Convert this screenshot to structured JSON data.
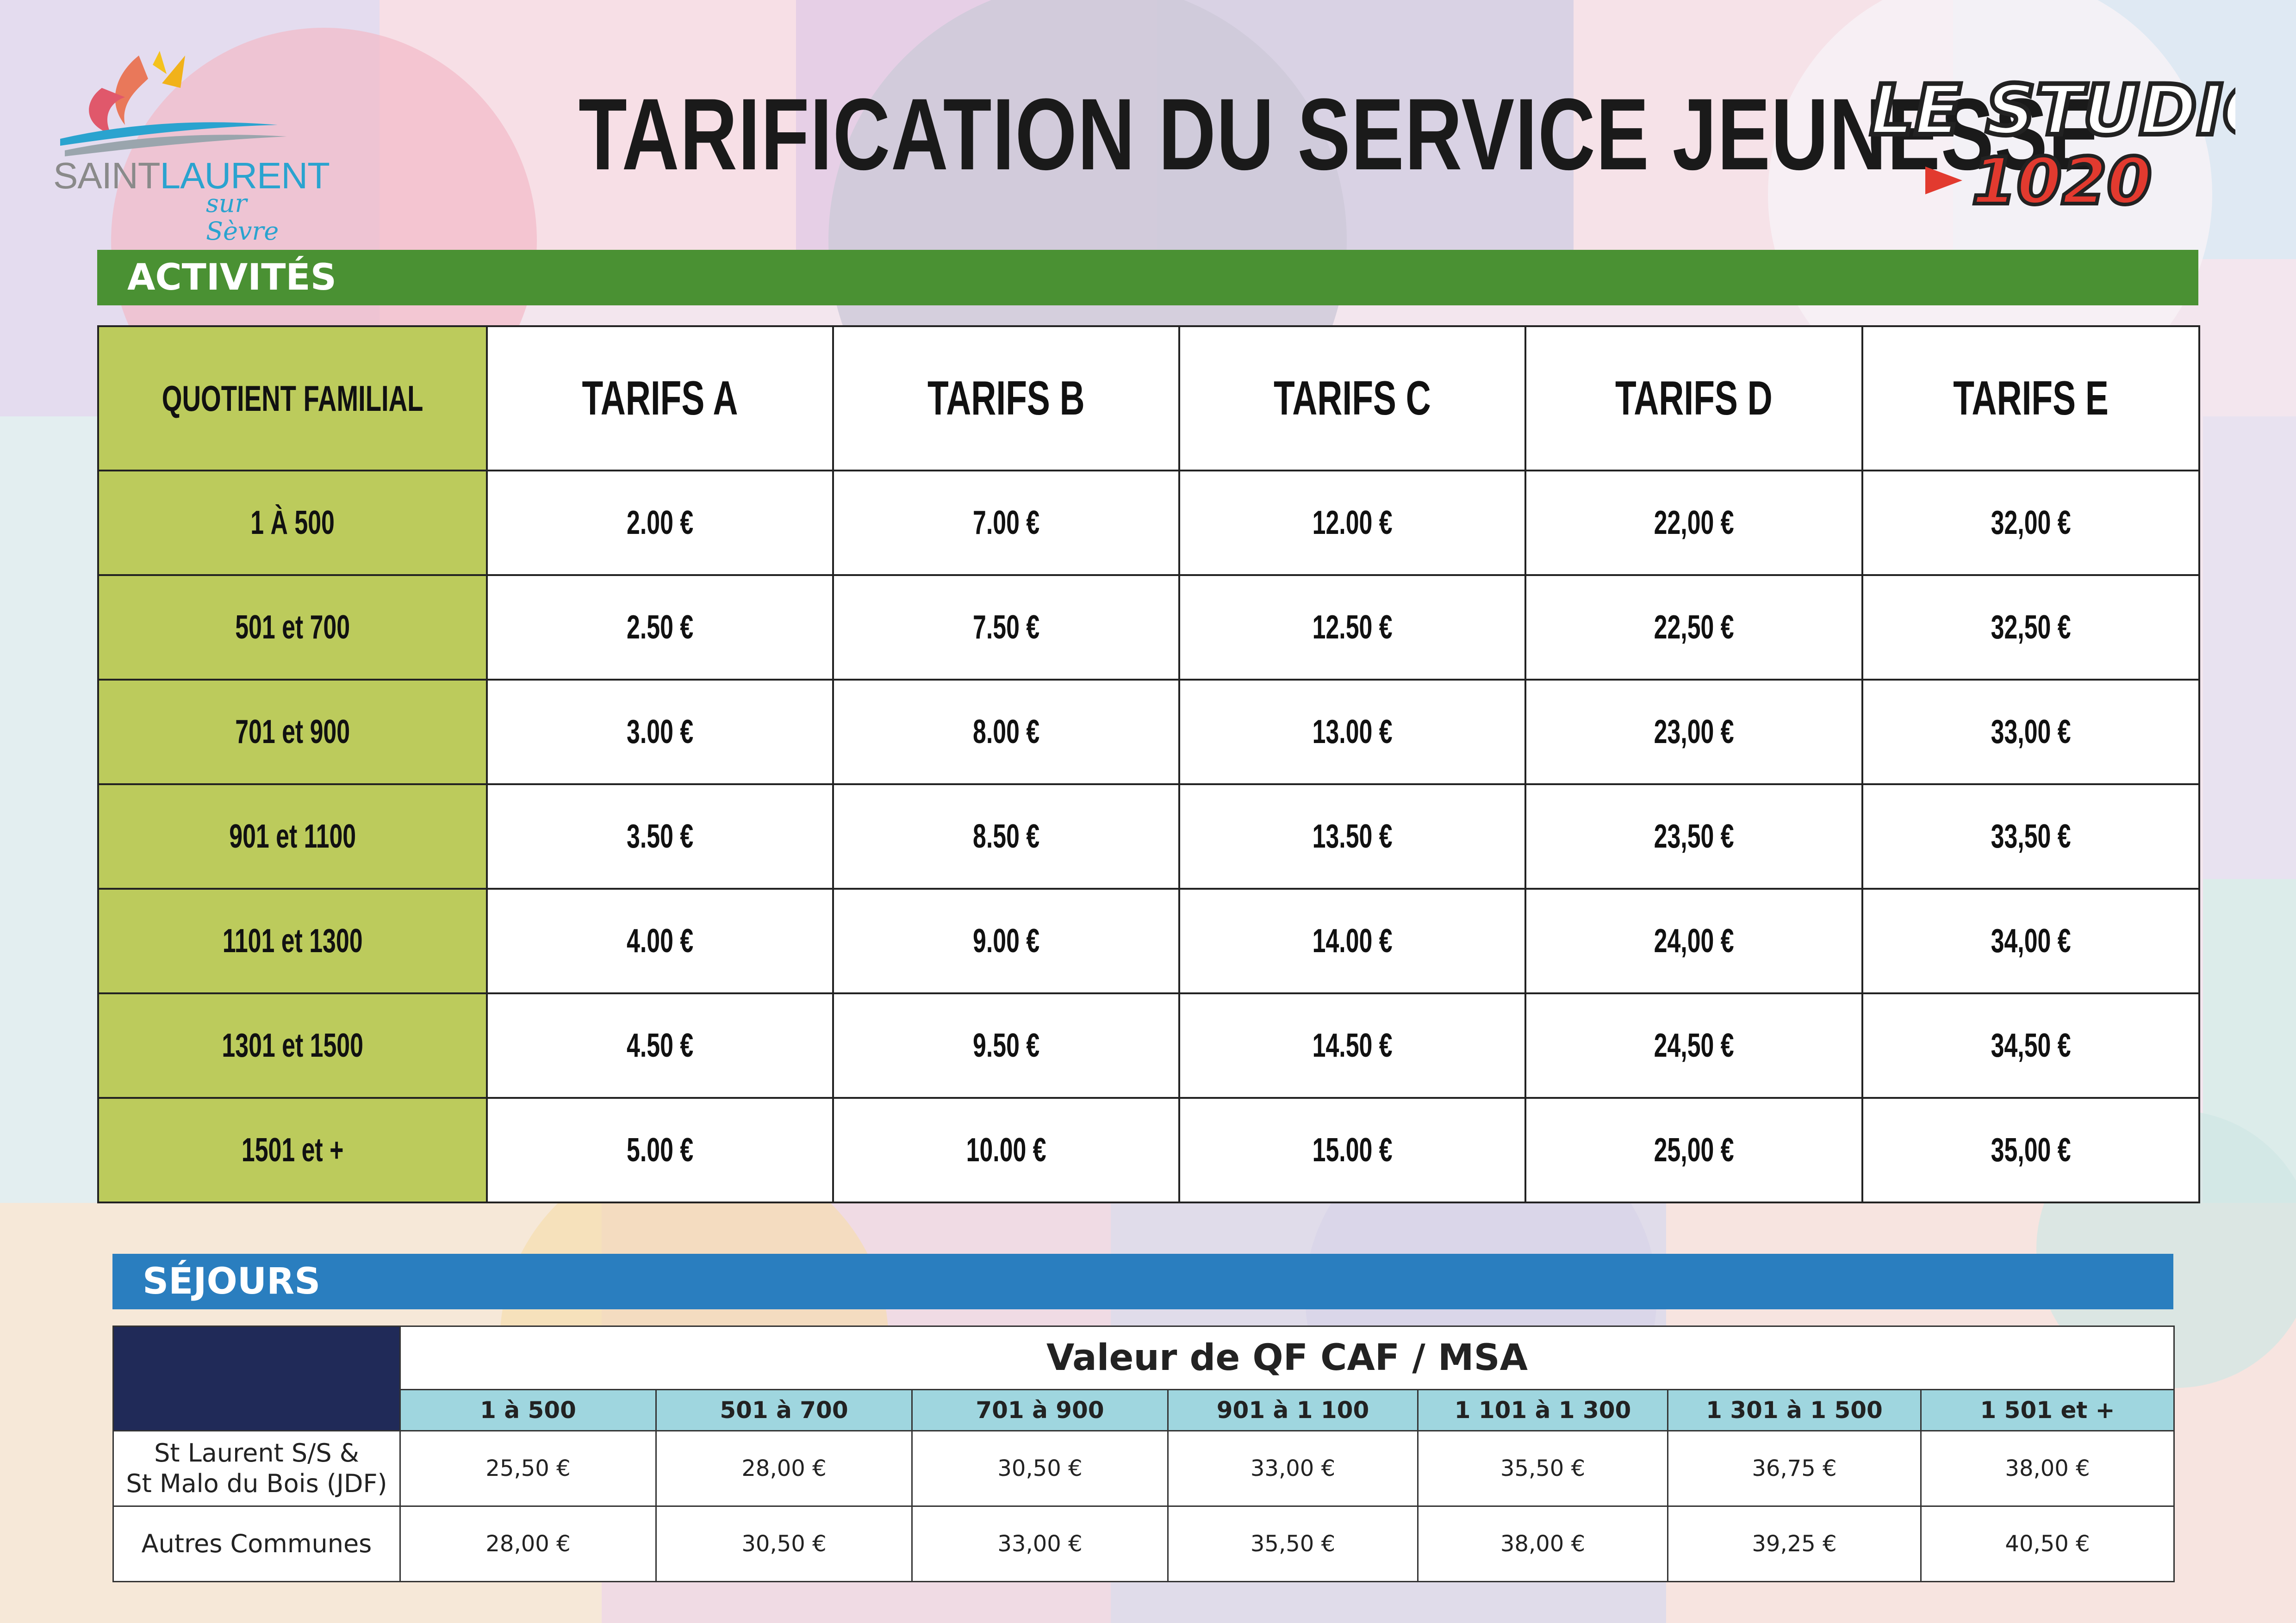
{
  "title": "TARIFICATION DU SERVICE JEUNESSE",
  "logo_left": {
    "brand_saint": "SAINT",
    "brand_laurent": "LAURENT",
    "brand_sub": "sur Sèvre"
  },
  "logo_right": {
    "line1": "LE STUDIO",
    "line2": "1020"
  },
  "colors": {
    "green_bar": "#4a9133",
    "qf_column": "#bccb5c",
    "blue_bar": "#2a7ebf",
    "navy": "#202a58",
    "range_row": "#9fd6df"
  },
  "activites": {
    "section_title": "ACTIVITÉS",
    "headers": [
      "QUOTIENT FAMILIAL",
      "TARIFS A",
      "TARIFS B",
      "TARIFS C",
      "TARIFS D",
      "TARIFS E"
    ],
    "rows": [
      {
        "qf": "1 À 500",
        "values": [
          "2.00 €",
          "7.00 €",
          "12.00 €",
          "22,00 €",
          "32,00 €"
        ]
      },
      {
        "qf": "501 et 700",
        "values": [
          "2.50 €",
          "7.50 €",
          "12.50 €",
          "22,50 €",
          "32,50 €"
        ]
      },
      {
        "qf": "701 et 900",
        "values": [
          "3.00 €",
          "8.00 €",
          "13.00 €",
          "23,00 €",
          "33,00 €"
        ]
      },
      {
        "qf": "901 et 1100",
        "values": [
          "3.50 €",
          "8.50 €",
          "13.50 €",
          "23,50 €",
          "33,50 €"
        ]
      },
      {
        "qf": "1101 et 1300",
        "values": [
          "4.00 €",
          "9.00 €",
          "14.00 €",
          "24,00 €",
          "34,00 €"
        ]
      },
      {
        "qf": "1301 et 1500",
        "values": [
          "4.50 €",
          "9.50 €",
          "14.50 €",
          "24,50 €",
          "34,50 €"
        ]
      },
      {
        "qf": "1501 et +",
        "values": [
          "5.00 €",
          "10.00 €",
          "15.00 €",
          "25,00 €",
          "35,00 €"
        ]
      }
    ]
  },
  "sejours": {
    "section_title": "SÉJOURS",
    "qf_header": "Valeur de QF CAF / MSA",
    "ranges": [
      "1 à 500",
      "501 à 700",
      "701 à 900",
      "901 à 1 100",
      "1 101 à 1 300",
      "1 301 à 1 500",
      "1 501 et +"
    ],
    "rows": [
      {
        "name_line1": "St Laurent S/S &",
        "name_line2": "St Malo du Bois (JDF)",
        "values": [
          "25,50 €",
          "28,00 €",
          "30,50 €",
          "33,00 €",
          "35,50 €",
          "36,75 €",
          "38,00 €"
        ]
      },
      {
        "name_line1": "Autres Communes",
        "name_line2": "",
        "values": [
          "28,00 €",
          "30,50 €",
          "33,00 €",
          "35,50 €",
          "38,00 €",
          "39,25 €",
          "40,50 €"
        ]
      }
    ]
  }
}
